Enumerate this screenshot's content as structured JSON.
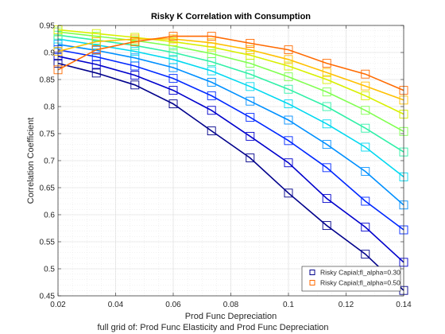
{
  "chart_data": {
    "type": "line",
    "title": "Risky K Correlation with Consumption",
    "xlabel": "Prod Func Depreciation",
    "ylabel": "Correlation Coefficient",
    "subtitle": "full grid of: Prod Func Elasticity and Prod Func Depreciation",
    "xlim": [
      0.02,
      0.14
    ],
    "ylim": [
      0.45,
      0.95
    ],
    "xticks": [
      "0.02",
      "0.04",
      "0.06",
      "0.08",
      "0.1",
      "0.12",
      "0.14"
    ],
    "yticks": [
      "0.45",
      "0.5",
      "0.55",
      "0.6",
      "0.65",
      "0.7",
      "0.75",
      "0.8",
      "0.85",
      "0.9",
      "0.95"
    ],
    "grid": true,
    "legend_position": "bottom-right",
    "legend": [
      {
        "label": "Risky Capial;fl_alpha=0.30",
        "color": "#00008b"
      },
      {
        "label": "Risky Capial;fl_alpha=0.50",
        "color": "#ff6a00"
      }
    ],
    "x": [
      0.02,
      0.0333,
      0.0467,
      0.06,
      0.0733,
      0.0867,
      0.1,
      0.1133,
      0.1267,
      0.14
    ],
    "series": [
      {
        "color": "#00008b",
        "values": [
          0.88,
          0.862,
          0.84,
          0.805,
          0.755,
          0.705,
          0.64,
          0.58,
          0.527,
          0.46
        ]
      },
      {
        "color": "#0000cc",
        "values": [
          0.893,
          0.878,
          0.858,
          0.83,
          0.793,
          0.745,
          0.696,
          0.63,
          0.577,
          0.512
        ]
      },
      {
        "color": "#0028ff",
        "values": [
          0.905,
          0.892,
          0.875,
          0.852,
          0.82,
          0.78,
          0.737,
          0.687,
          0.625,
          0.572
        ]
      },
      {
        "color": "#0090ff",
        "values": [
          0.915,
          0.904,
          0.89,
          0.872,
          0.845,
          0.81,
          0.775,
          0.73,
          0.68,
          0.618
        ]
      },
      {
        "color": "#00d8f0",
        "values": [
          0.925,
          0.914,
          0.902,
          0.887,
          0.866,
          0.837,
          0.805,
          0.768,
          0.725,
          0.67
        ]
      },
      {
        "color": "#30f0a8",
        "values": [
          0.932,
          0.923,
          0.913,
          0.9,
          0.883,
          0.86,
          0.832,
          0.8,
          0.76,
          0.716
        ]
      },
      {
        "color": "#80ff50",
        "values": [
          0.938,
          0.93,
          0.922,
          0.912,
          0.898,
          0.88,
          0.855,
          0.827,
          0.793,
          0.754
        ]
      },
      {
        "color": "#d8f000",
        "values": [
          0.942,
          0.935,
          0.928,
          0.92,
          0.91,
          0.895,
          0.875,
          0.85,
          0.82,
          0.786
        ]
      },
      {
        "color": "#ffc000",
        "values": [
          0.902,
          0.92,
          0.925,
          0.925,
          0.918,
          0.905,
          0.887,
          0.863,
          0.838,
          0.812
        ]
      },
      {
        "color": "#ff6a00",
        "values": [
          0.868,
          0.905,
          0.92,
          0.93,
          0.93,
          0.917,
          0.905,
          0.88,
          0.86,
          0.83
        ]
      }
    ]
  }
}
